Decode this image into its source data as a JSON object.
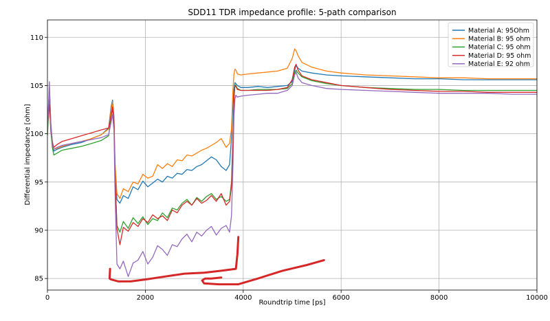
{
  "chart_data": {
    "type": "line",
    "title": "SDD11 TDR impedance profile: 5-path comparison",
    "xlabel": "Roundtrip time [ps]",
    "ylabel": "Differential impedance [ohm]",
    "xlim": [
      0,
      10000
    ],
    "ylim": [
      83.8,
      111.8
    ],
    "xticks": [
      0,
      2000,
      4000,
      6000,
      8000,
      10000
    ],
    "yticks": [
      85,
      90,
      95,
      100,
      105,
      110
    ],
    "xtick_labels": [
      "0",
      "2000",
      "4000",
      "6000",
      "8000",
      "10000"
    ],
    "ytick_labels": [
      "85",
      "90",
      "95",
      "100",
      "105",
      "110"
    ],
    "grid": true,
    "legend_position": "top-right",
    "series": [
      {
        "name": "Material A: 95Ohm",
        "color": "#1f77b4",
        "x": [
          0,
          40,
          70,
          100,
          130,
          200,
          300,
          500,
          700,
          900,
          1100,
          1250,
          1300,
          1330,
          1360,
          1380,
          1420,
          1480,
          1550,
          1650,
          1750,
          1850,
          1950,
          2050,
          2150,
          2250,
          2350,
          2450,
          2550,
          2650,
          2750,
          2850,
          2950,
          3050,
          3150,
          3250,
          3350,
          3450,
          3550,
          3650,
          3720,
          3760,
          3790,
          3810,
          3830,
          3850,
          3880,
          3950,
          4100,
          4300,
          4500,
          4700,
          4900,
          5000,
          5050,
          5080,
          5120,
          5200,
          5400,
          5700,
          6000,
          6500,
          7000,
          7500,
          8000,
          8500,
          9000,
          9500,
          10000
        ],
        "y": [
          100.5,
          104.8,
          101.0,
          99.3,
          98.2,
          98.4,
          98.6,
          98.9,
          99.1,
          99.5,
          99.9,
          100.6,
          102.8,
          103.5,
          101.8,
          96.5,
          93.2,
          92.8,
          93.6,
          93.3,
          94.5,
          94.2,
          95.1,
          94.5,
          94.9,
          95.3,
          95.0,
          95.6,
          95.4,
          95.9,
          95.8,
          96.3,
          96.2,
          96.6,
          96.8,
          97.2,
          97.6,
          97.3,
          96.6,
          96.2,
          96.8,
          99.5,
          103.3,
          104.6,
          105.3,
          105.2,
          105.0,
          104.8,
          104.8,
          104.9,
          104.8,
          104.9,
          105.0,
          105.4,
          106.6,
          107.1,
          106.8,
          106.5,
          106.3,
          106.1,
          106.0,
          105.9,
          105.8,
          105.7,
          105.7,
          105.6,
          105.6,
          105.6,
          105.6
        ]
      },
      {
        "name": "Material B:  95 ohm",
        "color": "#ff7f0e",
        "x": [
          0,
          40,
          70,
          100,
          130,
          200,
          300,
          500,
          700,
          900,
          1100,
          1250,
          1300,
          1330,
          1360,
          1380,
          1420,
          1480,
          1550,
          1650,
          1750,
          1850,
          1950,
          2050,
          2150,
          2250,
          2350,
          2450,
          2550,
          2650,
          2750,
          2850,
          2950,
          3050,
          3150,
          3250,
          3350,
          3450,
          3550,
          3650,
          3720,
          3760,
          3790,
          3810,
          3830,
          3850,
          3880,
          3950,
          4100,
          4300,
          4500,
          4700,
          4900,
          5000,
          5050,
          5080,
          5120,
          5200,
          5400,
          5700,
          6000,
          6500,
          7000,
          7500,
          8000,
          8500,
          9000,
          9500,
          10000
        ],
        "y": [
          100.2,
          104.0,
          100.8,
          99.1,
          98.4,
          98.5,
          98.7,
          99.0,
          99.2,
          99.5,
          99.9,
          100.5,
          102.5,
          103.3,
          101.5,
          97.0,
          93.8,
          93.3,
          94.3,
          94.0,
          95.0,
          94.8,
          95.8,
          95.4,
          95.6,
          96.8,
          96.4,
          96.9,
          96.6,
          97.3,
          97.2,
          97.8,
          97.7,
          98.0,
          98.3,
          98.5,
          98.8,
          99.1,
          99.5,
          98.6,
          99.0,
          100.5,
          104.5,
          106.2,
          106.7,
          106.6,
          106.2,
          106.1,
          106.2,
          106.3,
          106.4,
          106.5,
          106.8,
          107.8,
          108.8,
          108.6,
          108.1,
          107.4,
          106.9,
          106.5,
          106.3,
          106.1,
          106.0,
          105.9,
          105.8,
          105.8,
          105.7,
          105.7,
          105.7
        ]
      },
      {
        "name": "Material C:  95 ohm",
        "color": "#2ca02c",
        "x": [
          0,
          40,
          70,
          100,
          130,
          200,
          300,
          500,
          700,
          900,
          1100,
          1250,
          1300,
          1330,
          1360,
          1380,
          1420,
          1480,
          1550,
          1650,
          1750,
          1850,
          1950,
          2050,
          2150,
          2250,
          2350,
          2450,
          2550,
          2650,
          2750,
          2850,
          2950,
          3050,
          3150,
          3250,
          3350,
          3450,
          3550,
          3650,
          3720,
          3760,
          3790,
          3810,
          3830,
          3850,
          3880,
          3950,
          4100,
          4300,
          4500,
          4700,
          4900,
          5000,
          5050,
          5080,
          5120,
          5200,
          5400,
          5700,
          6000,
          6500,
          7000,
          7500,
          8000,
          8500,
          9000,
          9500,
          10000
        ],
        "y": [
          99.8,
          103.5,
          100.2,
          98.6,
          97.8,
          98.0,
          98.3,
          98.5,
          98.7,
          99.0,
          99.3,
          99.8,
          101.8,
          102.6,
          100.9,
          95.8,
          90.5,
          89.8,
          90.9,
          90.2,
          91.3,
          90.7,
          91.4,
          90.6,
          91.2,
          91.0,
          91.8,
          91.3,
          92.3,
          92.1,
          92.8,
          93.2,
          92.6,
          93.4,
          93.0,
          93.5,
          93.8,
          93.2,
          93.5,
          93.0,
          93.2,
          95.0,
          99.5,
          103.8,
          105.1,
          105.0,
          104.7,
          104.5,
          104.5,
          104.6,
          104.6,
          104.6,
          104.7,
          105.2,
          106.3,
          106.6,
          106.3,
          105.9,
          105.5,
          105.2,
          105.0,
          104.8,
          104.7,
          104.6,
          104.6,
          104.5,
          104.5,
          104.5,
          104.5
        ]
      },
      {
        "name": "Material D: 95 ohm",
        "color": "#d62728",
        "x": [
          0,
          40,
          70,
          100,
          130,
          200,
          300,
          500,
          700,
          900,
          1100,
          1250,
          1300,
          1330,
          1360,
          1380,
          1420,
          1480,
          1550,
          1650,
          1750,
          1850,
          1950,
          2050,
          2150,
          2250,
          2350,
          2450,
          2550,
          2650,
          2750,
          2850,
          2950,
          3050,
          3150,
          3250,
          3350,
          3450,
          3550,
          3650,
          3720,
          3760,
          3790,
          3810,
          3830,
          3850,
          3880,
          3950,
          4100,
          4300,
          4500,
          4700,
          4900,
          5000,
          5050,
          5080,
          5120,
          5200,
          5400,
          5700,
          6000,
          6500,
          7000,
          7500,
          8000,
          8500,
          9000,
          9500,
          10000
        ],
        "y": [
          100.8,
          103.0,
          100.4,
          99.1,
          98.6,
          98.9,
          99.2,
          99.5,
          99.8,
          100.1,
          100.4,
          100.6,
          101.9,
          102.8,
          101.2,
          96.0,
          90.2,
          88.5,
          90.3,
          89.9,
          90.8,
          90.4,
          91.2,
          90.8,
          91.6,
          91.2,
          91.5,
          91.0,
          92.1,
          91.8,
          92.6,
          93.0,
          92.6,
          93.3,
          92.8,
          93.1,
          93.6,
          93.0,
          93.8,
          92.6,
          93.0,
          94.5,
          99.2,
          103.5,
          105.0,
          104.9,
          104.6,
          104.5,
          104.5,
          104.5,
          104.5,
          104.6,
          104.8,
          105.6,
          106.9,
          107.2,
          106.6,
          106.0,
          105.6,
          105.3,
          105.0,
          104.8,
          104.6,
          104.5,
          104.4,
          104.4,
          104.3,
          104.3,
          104.3
        ]
      },
      {
        "name": "Material E:  92 ohm",
        "color": "#9467bd",
        "x": [
          0,
          40,
          70,
          100,
          130,
          200,
          300,
          500,
          700,
          900,
          1100,
          1250,
          1300,
          1330,
          1360,
          1380,
          1420,
          1480,
          1550,
          1650,
          1750,
          1850,
          1950,
          2050,
          2150,
          2250,
          2350,
          2450,
          2550,
          2650,
          2750,
          2850,
          2950,
          3050,
          3150,
          3250,
          3350,
          3450,
          3550,
          3650,
          3720,
          3760,
          3790,
          3810,
          3830,
          3850,
          3880,
          3950,
          4100,
          4300,
          4500,
          4700,
          4900,
          5000,
          5050,
          5080,
          5120,
          5200,
          5400,
          5700,
          6000,
          6500,
          7000,
          7500,
          8000,
          8500,
          9000,
          9500,
          10000
        ],
        "y": [
          100.0,
          105.4,
          100.9,
          98.8,
          98.4,
          98.6,
          98.8,
          99.0,
          99.2,
          99.4,
          99.6,
          99.9,
          101.2,
          102.0,
          100.3,
          94.0,
          86.5,
          86.0,
          86.8,
          85.2,
          86.6,
          86.9,
          87.8,
          86.5,
          87.2,
          88.4,
          88.0,
          87.4,
          88.5,
          88.3,
          89.1,
          89.6,
          88.8,
          89.8,
          89.4,
          90.0,
          90.4,
          89.5,
          90.2,
          90.5,
          89.8,
          91.5,
          96.5,
          101.8,
          103.6,
          104.0,
          103.8,
          103.9,
          104.0,
          104.1,
          104.2,
          104.2,
          104.5,
          105.0,
          106.1,
          106.4,
          105.8,
          105.3,
          105.0,
          104.7,
          104.6,
          104.5,
          104.4,
          104.3,
          104.2,
          104.2,
          104.2,
          104.1,
          104.1
        ]
      }
    ],
    "annotations": {
      "color": "#d62728",
      "strokes": [
        {
          "x": [
            1280,
            1270,
            1300,
            1450,
            1700,
            2000,
            2400,
            2800,
            3200,
            3550,
            3850,
            3880,
            3900
          ],
          "y": [
            86.0,
            85.0,
            84.9,
            84.7,
            84.7,
            84.9,
            85.2,
            85.5,
            85.6,
            85.8,
            86.0,
            87.5,
            89.3
          ]
        },
        {
          "x": [
            3550,
            3350,
            3220,
            3160,
            3200,
            3500,
            3900,
            4300,
            4800,
            5300,
            5650
          ],
          "y": [
            85.1,
            85.0,
            85.0,
            84.8,
            84.5,
            84.4,
            84.4,
            85.0,
            85.8,
            86.4,
            86.9
          ]
        }
      ]
    }
  }
}
